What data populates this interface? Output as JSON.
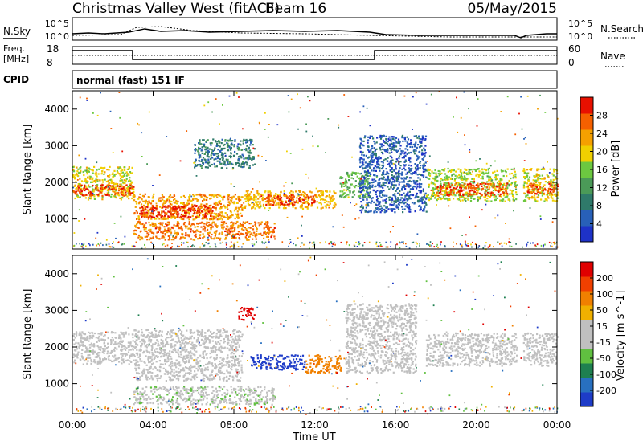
{
  "header": {
    "station": "Christmas Valley West (fitACF)",
    "beam": "Beam 16",
    "date": "05/May/2015"
  },
  "top_panels": {
    "nsky_label": "N.Sky",
    "nsky_ticks": [
      "10^5",
      "10^0"
    ],
    "nsearch_label": "N.Search",
    "nsearch_ticks": [
      "10^5",
      "10^0"
    ],
    "freq_label": "Freq.",
    "freq_unit": "[MHz]",
    "freq_ticks": [
      "18",
      "8"
    ],
    "nave_label": "Nave",
    "nave_ticks": [
      "60",
      "0"
    ],
    "cpid_label": "CPID",
    "cpid_text": "normal (fast) 151 IF"
  },
  "colors": {
    "power": [
      "#1e32c8",
      "#2860b8",
      "#2f7a6a",
      "#4b9a58",
      "#6cc840",
      "#f0d000",
      "#f5a000",
      "#f56000",
      "#e81000"
    ],
    "velocity": [
      "#1e3cc8",
      "#2870c0",
      "#1e8050",
      "#60c040",
      "#c0c0c0",
      "#c0c0c0",
      "#f0b000",
      "#f08000",
      "#f04000",
      "#e00000"
    ]
  },
  "chart_data": [
    {
      "type": "heatmap",
      "panel": "power",
      "ylabel": "Slant Range [km]",
      "yticks": [
        "1000",
        "2000",
        "3000",
        "4000"
      ],
      "ylim": [
        180,
        4500
      ],
      "colorbar": {
        "label": "Power [dB]",
        "ticks": [
          "4",
          "8",
          "12",
          "16",
          "20",
          "24",
          "28"
        ],
        "range": [
          0,
          30
        ]
      },
      "regions": [
        {
          "t0": 0.0,
          "t1": 3.0,
          "r0": 1550,
          "r1": 2450,
          "v": 18
        },
        {
          "t0": 0.0,
          "t1": 3.0,
          "r0": 1650,
          "r1": 1950,
          "v": 27
        },
        {
          "t0": 3.0,
          "t1": 8.4,
          "r0": 1000,
          "r1": 1700,
          "v": 22
        },
        {
          "t0": 3.3,
          "t1": 7.0,
          "r0": 1050,
          "r1": 1400,
          "v": 28
        },
        {
          "t0": 3.0,
          "t1": 10.0,
          "r0": 450,
          "r1": 950,
          "v": 24
        },
        {
          "t0": 8.5,
          "t1": 13.0,
          "r0": 1300,
          "r1": 1800,
          "v": 20
        },
        {
          "t0": 9.5,
          "t1": 12.0,
          "r0": 1400,
          "r1": 1700,
          "v": 27
        },
        {
          "t0": 13.2,
          "t1": 14.7,
          "r0": 1600,
          "r1": 2300,
          "v": 14
        },
        {
          "t0": 17.5,
          "t1": 22.0,
          "r0": 1500,
          "r1": 2400,
          "v": 16
        },
        {
          "t0": 18.0,
          "t1": 21.5,
          "r0": 1650,
          "r1": 2000,
          "v": 26
        },
        {
          "t0": 22.3,
          "t1": 24.0,
          "r0": 1500,
          "r1": 2400,
          "v": 18
        },
        {
          "t0": 22.5,
          "t1": 24.0,
          "r0": 1700,
          "r1": 2000,
          "v": 26
        },
        {
          "t0": 6.0,
          "t1": 9.0,
          "r0": 2400,
          "r1": 3200,
          "v": 8
        },
        {
          "t0": 14.2,
          "t1": 17.5,
          "r0": 1200,
          "r1": 3300,
          "v": 5
        }
      ]
    },
    {
      "type": "heatmap",
      "panel": "velocity",
      "xlabel": "Time UT",
      "xticks": [
        "00:00",
        "04:00",
        "08:00",
        "12:00",
        "16:00",
        "20:00",
        "00:00"
      ],
      "xlim": [
        0,
        24
      ],
      "ylabel": "Slant Range [km]",
      "yticks": [
        "1000",
        "2000",
        "3000",
        "4000"
      ],
      "ylim": [
        180,
        4500
      ],
      "colorbar": {
        "label": "Velocity [m s^-1]",
        "ticks": [
          "200",
          "100",
          "50",
          "15",
          "-15",
          "-50",
          "-100",
          "-200"
        ],
        "range": [
          -250,
          250
        ]
      },
      "regions": [
        {
          "t0": 0.0,
          "t1": 3.0,
          "r0": 1550,
          "r1": 2450,
          "v": 0
        },
        {
          "t0": 3.0,
          "t1": 8.4,
          "r0": 1100,
          "r1": 2500,
          "v": 0
        },
        {
          "t0": 3.0,
          "t1": 10.0,
          "r0": 450,
          "r1": 950,
          "v": -40
        },
        {
          "t0": 8.8,
          "t1": 11.5,
          "r0": 1400,
          "r1": 1800,
          "v": -230
        },
        {
          "t0": 11.5,
          "t1": 13.3,
          "r0": 1300,
          "r1": 1800,
          "v": 120
        },
        {
          "t0": 8.2,
          "t1": 9.0,
          "r0": 2750,
          "r1": 3100,
          "v": 230
        },
        {
          "t0": 17.5,
          "t1": 22.0,
          "r0": 1500,
          "r1": 2400,
          "v": 0
        },
        {
          "t0": 22.3,
          "t1": 24.0,
          "r0": 1500,
          "r1": 2400,
          "v": 0
        },
        {
          "t0": 13.5,
          "t1": 17.0,
          "r0": 1300,
          "r1": 3200,
          "v": 5
        }
      ]
    }
  ]
}
